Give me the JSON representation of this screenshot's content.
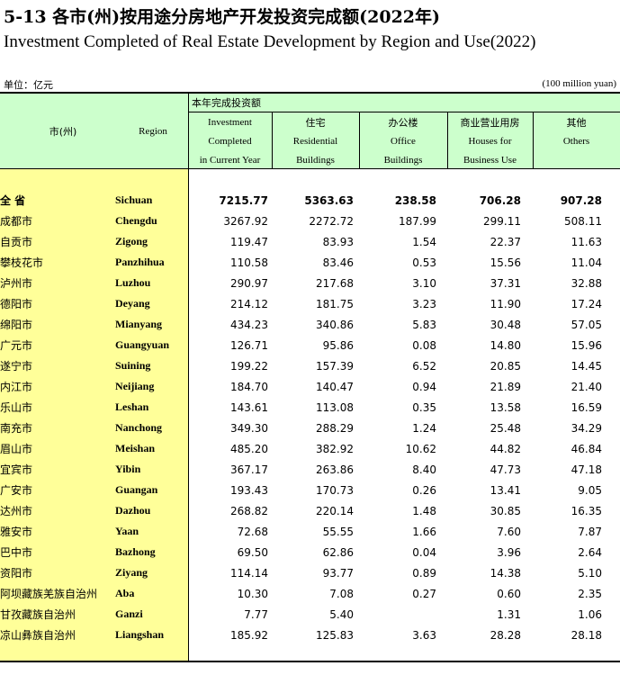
{
  "title_cn": "5-13  各市(州)按用途分房地产开发投资完成额(2022年)",
  "title_en": "Investment Completed of Real Estate Development by Region and Use(2022)",
  "unit_cn": "单位：亿元",
  "unit_en": "(100 million yuan)",
  "header": {
    "city_cn": "市(州)",
    "region_en": "Region",
    "group_label": "本年完成投资额",
    "cols": [
      {
        "cn": "",
        "en1": "Investment",
        "en2": "Completed",
        "en3": "in Current Year"
      },
      {
        "cn": "住宅",
        "en1": "",
        "en2": "Residential",
        "en3": "Buildings"
      },
      {
        "cn": "办公楼",
        "en1": "",
        "en2": "Office",
        "en3": "Buildings"
      },
      {
        "cn": "商业营业用房",
        "en1": "",
        "en2": "Houses for",
        "en3": "Business Use"
      },
      {
        "cn": "其他",
        "en1": "",
        "en2": "Others",
        "en3": ""
      }
    ]
  },
  "rows": [
    {
      "cn": "全  省",
      "en": "Sichuan",
      "v": [
        "7215.77",
        "5363.63",
        "238.58",
        "706.28",
        "907.28"
      ]
    },
    {
      "cn": "成都市",
      "en": "Chengdu",
      "v": [
        "3267.92",
        "2272.72",
        "187.99",
        "299.11",
        "508.11"
      ]
    },
    {
      "cn": "自贡市",
      "en": "Zigong",
      "v": [
        "119.47",
        "83.93",
        "1.54",
        "22.37",
        "11.63"
      ]
    },
    {
      "cn": "攀枝花市",
      "en": "Panzhihua",
      "v": [
        "110.58",
        "83.46",
        "0.53",
        "15.56",
        "11.04"
      ]
    },
    {
      "cn": "泸州市",
      "en": "Luzhou",
      "v": [
        "290.97",
        "217.68",
        "3.10",
        "37.31",
        "32.88"
      ]
    },
    {
      "cn": "德阳市",
      "en": "Deyang",
      "v": [
        "214.12",
        "181.75",
        "3.23",
        "11.90",
        "17.24"
      ]
    },
    {
      "cn": "绵阳市",
      "en": "Mianyang",
      "v": [
        "434.23",
        "340.86",
        "5.83",
        "30.48",
        "57.05"
      ]
    },
    {
      "cn": "广元市",
      "en": "Guangyuan",
      "v": [
        "126.71",
        "95.86",
        "0.08",
        "14.80",
        "15.96"
      ]
    },
    {
      "cn": "遂宁市",
      "en": "Suining",
      "v": [
        "199.22",
        "157.39",
        "6.52",
        "20.85",
        "14.45"
      ]
    },
    {
      "cn": "内江市",
      "en": "Neijiang",
      "v": [
        "184.70",
        "140.47",
        "0.94",
        "21.89",
        "21.40"
      ]
    },
    {
      "cn": "乐山市",
      "en": "Leshan",
      "v": [
        "143.61",
        "113.08",
        "0.35",
        "13.58",
        "16.59"
      ]
    },
    {
      "cn": "南充市",
      "en": "Nanchong",
      "v": [
        "349.30",
        "288.29",
        "1.24",
        "25.48",
        "34.29"
      ]
    },
    {
      "cn": "眉山市",
      "en": "Meishan",
      "v": [
        "485.20",
        "382.92",
        "10.62",
        "44.82",
        "46.84"
      ]
    },
    {
      "cn": "宜宾市",
      "en": "Yibin",
      "v": [
        "367.17",
        "263.86",
        "8.40",
        "47.73",
        "47.18"
      ]
    },
    {
      "cn": "广安市",
      "en": "Guangan",
      "v": [
        "193.43",
        "170.73",
        "0.26",
        "13.41",
        "9.05"
      ]
    },
    {
      "cn": "达州市",
      "en": "Dazhou",
      "v": [
        "268.82",
        "220.14",
        "1.48",
        "30.85",
        "16.35"
      ]
    },
    {
      "cn": "雅安市",
      "en": "Yaan",
      "v": [
        "72.68",
        "55.55",
        "1.66",
        "7.60",
        "7.87"
      ]
    },
    {
      "cn": "巴中市",
      "en": "Bazhong",
      "v": [
        "69.50",
        "62.86",
        "0.04",
        "3.96",
        "2.64"
      ]
    },
    {
      "cn": "资阳市",
      "en": "Ziyang",
      "v": [
        "114.14",
        "93.77",
        "0.89",
        "14.38",
        "5.10"
      ]
    },
    {
      "cn": "阿坝藏族羌族自治州",
      "en": "Aba",
      "v": [
        "10.30",
        "7.08",
        "0.27",
        "0.60",
        "2.35"
      ]
    },
    {
      "cn": "甘孜藏族自治州",
      "en": "Ganzi",
      "v": [
        "7.77",
        "5.40",
        "",
        "1.31",
        "1.06"
      ]
    },
    {
      "cn": "凉山彝族自治州",
      "en": "Liangshan",
      "v": [
        "185.92",
        "125.83",
        "3.63",
        "28.28",
        "28.18"
      ]
    }
  ]
}
